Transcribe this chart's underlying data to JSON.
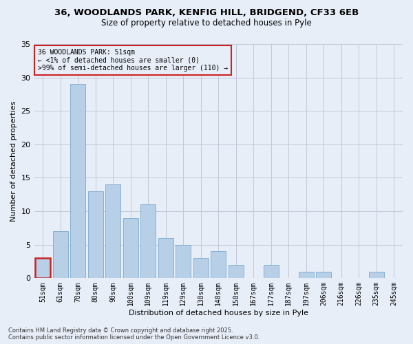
{
  "title_line1": "36, WOODLANDS PARK, KENFIG HILL, BRIDGEND, CF33 6EB",
  "title_line2": "Size of property relative to detached houses in Pyle",
  "xlabel": "Distribution of detached houses by size in Pyle",
  "ylabel": "Number of detached properties",
  "categories": [
    "51sqm",
    "61sqm",
    "70sqm",
    "80sqm",
    "90sqm",
    "100sqm",
    "109sqm",
    "119sqm",
    "129sqm",
    "138sqm",
    "148sqm",
    "158sqm",
    "167sqm",
    "177sqm",
    "187sqm",
    "197sqm",
    "206sqm",
    "216sqm",
    "226sqm",
    "235sqm",
    "245sqm"
  ],
  "values": [
    3,
    7,
    29,
    13,
    14,
    9,
    11,
    6,
    5,
    3,
    4,
    2,
    0,
    2,
    0,
    1,
    1,
    0,
    0,
    1,
    0
  ],
  "bar_color": "#b8cfe8",
  "bar_edge_color": "#7aaad0",
  "highlight_index": 0,
  "highlight_color": "#cc2222",
  "ylim": [
    0,
    35
  ],
  "yticks": [
    0,
    5,
    10,
    15,
    20,
    25,
    30,
    35
  ],
  "annotation_box_text": "36 WOODLANDS PARK: 51sqm\n← <1% of detached houses are smaller (0)\n>99% of semi-detached houses are larger (110) →",
  "annotation_box_color": "#cc2222",
  "footer": "Contains HM Land Registry data © Crown copyright and database right 2025.\nContains public sector information licensed under the Open Government Licence v3.0.",
  "background_color": "#e8eef8",
  "grid_color": "#c0c8d8",
  "title_fontsize": 9.5,
  "subtitle_fontsize": 8.5,
  "ylabel_fontsize": 8,
  "xlabel_fontsize": 8,
  "tick_fontsize": 7,
  "annot_fontsize": 7,
  "footer_fontsize": 6
}
